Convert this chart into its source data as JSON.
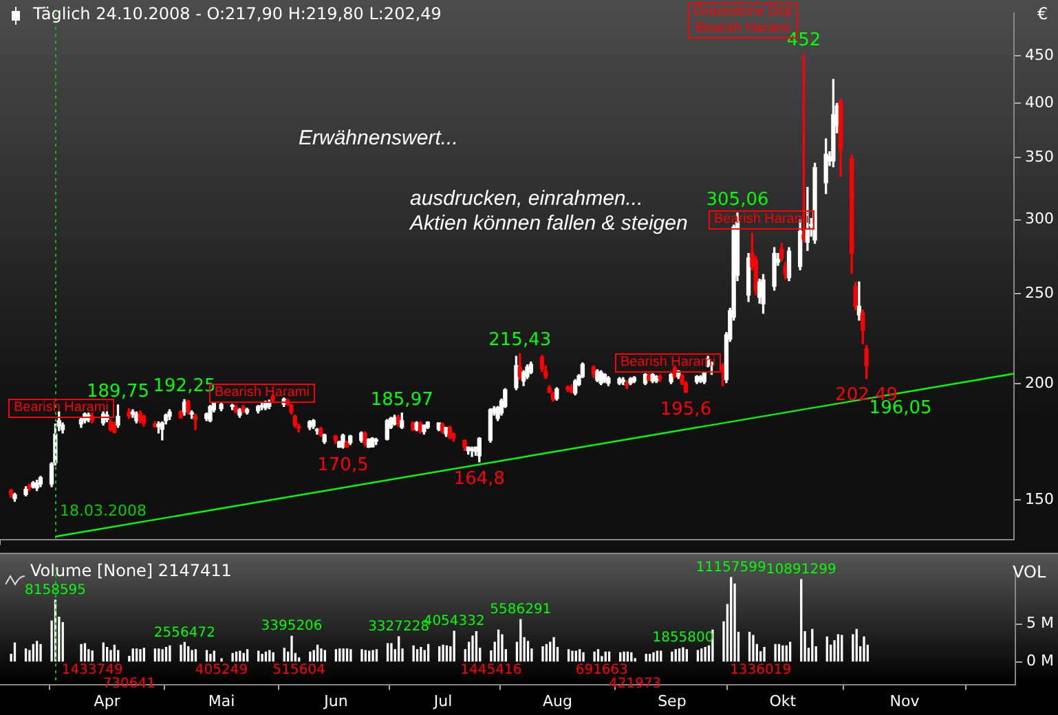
{
  "chart_data": [
    {
      "type": "candlestick",
      "title": "Täglich 24.10.2008 - O:217,90 H:219,80 L:202,49",
      "ylabel": "€",
      "annotations": [
        "Erwähnenswert...",
        "ausdrucken, einrahmen...",
        "Aktien können fallen & steigen",
        "Bearish Harami",
        "Bearish Harami",
        "Bearish Harami",
        "Bearish Harami",
        "Gravestone Doji\nBearish Harami",
        {
          "text": "189,75",
          "x": "2008-04-04",
          "y": 189.75
        },
        {
          "text": "192,25",
          "x": "2008-04-22",
          "y": 192.25
        },
        {
          "text": "170,5",
          "x": "2008-06-04",
          "y": 170.5
        },
        {
          "text": "185,97",
          "x": "2008-06-20",
          "y": 185.97
        },
        {
          "text": "164,8",
          "x": "2008-07-11",
          "y": 164.8
        },
        {
          "text": "215,43",
          "x": "2008-07-22",
          "y": 215.43
        },
        {
          "text": "195,6",
          "x": "2008-09-05",
          "y": 195.6
        },
        {
          "text": "305,06",
          "x": "2008-09-19",
          "y": 305.06
        },
        {
          "text": "452",
          "x": "2008-10-07",
          "y": 452
        },
        {
          "text": "202,49",
          "x": "2008-10-24",
          "y": 202.49
        },
        {
          "text": "196,05",
          "x": "2008-10-24",
          "y": 196.05
        }
      ],
      "x": [
        "2008-03-06",
        "2008-03-07",
        "2008-03-10",
        "2008-03-11",
        "2008-03-12",
        "2008-03-13",
        "2008-03-14",
        "2008-03-17",
        "2008-03-18",
        "2008-03-19",
        "2008-03-20",
        "2008-03-25",
        "2008-03-26",
        "2008-03-27",
        "2008-03-28",
        "2008-03-31",
        "2008-04-01",
        "2008-04-02",
        "2008-04-03",
        "2008-04-04",
        "2008-04-07",
        "2008-04-08",
        "2008-04-09",
        "2008-04-10",
        "2008-04-11",
        "2008-04-14",
        "2008-04-15",
        "2008-04-16",
        "2008-04-17",
        "2008-04-18",
        "2008-04-21",
        "2008-04-22",
        "2008-04-23",
        "2008-04-24",
        "2008-04-25",
        "2008-04-28",
        "2008-04-29",
        "2008-04-30",
        "2008-05-02",
        "2008-05-05",
        "2008-05-06",
        "2008-05-07",
        "2008-05-08",
        "2008-05-09",
        "2008-05-12",
        "2008-05-13",
        "2008-05-14",
        "2008-05-15",
        "2008-05-16",
        "2008-05-19",
        "2008-05-20",
        "2008-05-21",
        "2008-05-22",
        "2008-05-23",
        "2008-05-26",
        "2008-05-27",
        "2008-05-28",
        "2008-05-29",
        "2008-05-30",
        "2008-06-02",
        "2008-06-03",
        "2008-06-04",
        "2008-06-05",
        "2008-06-06",
        "2008-06-09",
        "2008-06-10",
        "2008-06-11",
        "2008-06-12",
        "2008-06-13",
        "2008-06-16",
        "2008-06-17",
        "2008-06-18",
        "2008-06-19",
        "2008-06-20",
        "2008-06-23",
        "2008-06-24",
        "2008-06-25",
        "2008-06-26",
        "2008-06-27",
        "2008-06-30",
        "2008-07-01",
        "2008-07-02",
        "2008-07-03",
        "2008-07-04",
        "2008-07-07",
        "2008-07-08",
        "2008-07-09",
        "2008-07-10",
        "2008-07-11",
        "2008-07-14",
        "2008-07-15",
        "2008-07-16",
        "2008-07-17",
        "2008-07-18",
        "2008-07-21",
        "2008-07-22",
        "2008-07-23",
        "2008-07-24",
        "2008-07-25",
        "2008-07-28",
        "2008-07-29",
        "2008-07-30",
        "2008-07-31",
        "2008-08-01",
        "2008-08-04",
        "2008-08-05",
        "2008-08-06",
        "2008-08-07",
        "2008-08-08",
        "2008-08-11",
        "2008-08-12",
        "2008-08-13",
        "2008-08-14",
        "2008-08-15",
        "2008-08-18",
        "2008-08-19",
        "2008-08-20",
        "2008-08-21",
        "2008-08-22",
        "2008-08-25",
        "2008-08-26",
        "2008-08-27",
        "2008-08-28",
        "2008-08-29",
        "2008-09-01",
        "2008-09-02",
        "2008-09-03",
        "2008-09-04",
        "2008-09-05",
        "2008-09-08",
        "2008-09-09",
        "2008-09-10",
        "2008-09-11",
        "2008-09-12",
        "2008-09-15",
        "2008-09-16",
        "2008-09-17",
        "2008-09-18",
        "2008-09-19",
        "2008-09-22",
        "2008-09-23",
        "2008-09-24",
        "2008-09-25",
        "2008-09-26",
        "2008-09-29",
        "2008-09-30",
        "2008-10-01",
        "2008-10-02",
        "2008-10-03",
        "2008-10-06",
        "2008-10-07",
        "2008-10-08",
        "2008-10-09",
        "2008-10-10",
        "2008-10-13",
        "2008-10-14",
        "2008-10-15",
        "2008-10-16",
        "2008-10-17",
        "2008-10-20",
        "2008-10-21",
        "2008-10-22",
        "2008-10-23",
        "2008-10-24"
      ],
      "series": [
        {
          "colors": [
            "#ff0000",
            "#ffffff",
            "#ffffff",
            "#ff0000",
            "#ffffff",
            "#ffffff",
            "#ffffff",
            "#ffffff",
            "#ffffff",
            "#ffffff",
            "#ffffff",
            "#ffffff",
            "#ffffff",
            "#ffffff",
            "#ff0000",
            "#ffffff",
            "#ffffff",
            "#ff0000",
            "#ff0000",
            "#ffffff",
            "#ff0000",
            "#ffffff",
            "#ffffff",
            "#ff0000",
            "#ff0000",
            "#ff0000",
            "#ffffff",
            "#ffffff",
            "#ffffff",
            "#ffffff",
            "#ff0000",
            "#ffffff",
            "#ff0000",
            "#ffffff",
            "#ff0000",
            "#ffffff",
            "#ffffff",
            "#ffffff",
            "#ffffff",
            "#ffffff",
            "#ff0000",
            "#ffffff",
            "#ff0000",
            "#ffffff",
            "#ffffff",
            "#ffffff",
            "#ffffff",
            "#ffffff",
            "#ff0000",
            "#ffffff",
            "#ff0000",
            "#ff0000",
            "#ff0000",
            "#ff0000",
            "#ffffff",
            "#ffffff",
            "#ffffff",
            "#ff0000",
            "#ffffff",
            "#ff0000",
            "#ffffff",
            "#ffffff",
            "#ff0000",
            "#ffffff",
            "#ffffff",
            "#ff0000",
            "#ffffff",
            "#ffffff",
            "#ffffff",
            "#ffffff",
            "#ffffff",
            "#ffffff",
            "#ff0000",
            "#ffffff",
            "#ff0000",
            "#ffffff",
            "#ff0000",
            "#ffffff",
            "#ffffff",
            "#ffffff",
            "#ff0000",
            "#ffffff",
            "#ff0000",
            "#ff0000",
            "#ff0000",
            "#ffffff",
            "#ffffff",
            "#ffffff",
            "#ffffff",
            "#ffffff",
            "#ffffff",
            "#ffffff",
            "#ffffff",
            "#ffffff",
            "#ffffff",
            "#ff0000",
            "#ffffff",
            "#ffffff",
            "#ffffff",
            "#ff0000",
            "#ff0000",
            "#ff0000",
            "#ff0000",
            "#ffffff",
            "#ff0000",
            "#ff0000",
            "#ffffff",
            "#ffffff",
            "#ffffff",
            "#ff0000",
            "#ffffff",
            "#ffffff",
            "#ffffff",
            "#ffffff",
            "#ffffff",
            "#ffffff",
            "#ff0000",
            "#ffffff",
            "#ffffff",
            "#ffffff",
            "#ff0000",
            "#ffffff",
            "#ffffff",
            "#ff0000",
            "#ffffff",
            "#ff0000",
            "#ffffff",
            "#ff0000",
            "#ff0000",
            "#ffffff",
            "#ffffff",
            "#ffffff",
            "#ffffff",
            "#ffffff",
            "#ff0000",
            "#ffffff",
            "#ffffff",
            "#ffffff",
            "#ffffff",
            "#ffffff",
            "#ff0000",
            "#ff0000",
            "#ffffff",
            "#ffffff",
            "#ffffff",
            "#ffffff",
            "#ff0000",
            "#ff0000",
            "#ffffff",
            "#ffffff",
            "#ff0000",
            "#ffffff",
            "#ffffff",
            "#ffffff",
            "#ffffff",
            "#ffffff",
            "#ffffff",
            "#ffffff",
            "#ff0000",
            "#ff0000",
            "#ff0000",
            "#ffffff",
            "#ff0000",
            "#ff0000"
          ],
          "ohlc": [
            [
              153.5,
              154,
              151,
              152
            ],
            [
              150.5,
              152.5,
              149.5,
              152
            ],
            [
              152,
              155,
              151.5,
              154
            ],
            [
              155.5,
              156,
              153.5,
              154.5
            ],
            [
              155,
              157,
              154.5,
              156.5
            ],
            [
              154.5,
              157.5,
              153.5,
              156.5
            ],
            [
              156,
              159,
              155,
              158.5
            ],
            [
              156,
              164.5,
              155,
              164
            ],
            [
              164.5,
              181,
              163.5,
              176.5
            ],
            [
              180,
              186.5,
              178,
              182.5
            ],
            [
              178.5,
              181.5,
              177,
              180.5
            ],
            [
              181,
              184,
              179.5,
              183
            ],
            [
              182.5,
              186,
              181.5,
              185.5
            ],
            [
              183,
              186,
              182,
              185
            ],
            [
              184.5,
              186,
              181.5,
              182.5
            ],
            [
              181.5,
              186.5,
              180.5,
              185.5
            ],
            [
              183,
              186.5,
              182,
              185
            ],
            [
              182,
              183,
              178,
              178.5
            ],
            [
              181,
              182,
              177,
              177.5
            ],
            [
              180.5,
              189.75,
              179.5,
              184.5
            ],
            [
              186.5,
              188,
              183.5,
              184.5
            ],
            [
              185.5,
              187.5,
              184,
              186.5
            ],
            [
              182.5,
              186.5,
              181.5,
              185.5
            ],
            [
              186,
              187,
              181.5,
              182.5
            ],
            [
              184.5,
              185,
              180,
              181.5
            ],
            [
              181,
              182,
              179.5,
              179.8
            ],
            [
              179.8,
              182,
              177,
              181
            ],
            [
              178.6,
              182,
              174,
              181.5
            ],
            [
              182.5,
              185.5,
              181,
              185
            ],
            [
              184.5,
              187.5,
              183,
              186.5
            ],
            [
              186.5,
              187,
              183.5,
              184
            ],
            [
              186.5,
              192.25,
              185,
              191
            ],
            [
              191.5,
              192,
              185.5,
              186.5
            ],
            [
              185.5,
              187,
              183.5,
              185.8
            ],
            [
              184.5,
              185.5,
              178.5,
              183
            ],
            [
              183.5,
              186,
              182.5,
              185.5
            ],
            [
              182.5,
              189.5,
              182,
              189
            ],
            [
              187.5,
              191,
              186.5,
              190.5
            ],
            [
              188,
              190.5,
              187,
              190
            ],
            [
              189,
              190,
              187.5,
              189.3
            ],
            [
              188.6,
              189.5,
              186,
              186.5
            ],
            [
              185,
              188,
              184,
              187.5
            ],
            [
              188.6,
              189.5,
              186,
              186.7
            ],
            [
              186.3,
              188.2,
              185.5,
              187.6
            ],
            [
              187,
              189.5,
              186,
              189
            ],
            [
              188.8,
              190.5,
              187.5,
              189.2
            ],
            [
              188.3,
              191.5,
              187.5,
              190.6
            ],
            [
              189,
              192,
              188,
              190.6
            ],
            [
              193.7,
              194.5,
              191.5,
              192
            ],
            [
              190,
              193,
              189,
              192.5
            ],
            [
              192,
              192.5,
              189.5,
              190
            ],
            [
              189.5,
              190,
              185.5,
              186.5
            ],
            [
              184.5,
              185,
              179.5,
              180.5
            ],
            [
              179.5,
              181,
              177.5,
              179.3
            ],
            [
              179.5,
              182.5,
              178.5,
              182
            ],
            [
              180,
              183,
              179,
              182.5
            ],
            [
              178,
              179,
              176.5,
              178.5
            ],
            [
              179,
              179.5,
              175.5,
              176.2
            ],
            [
              173.2,
              176.5,
              172.5,
              176.2
            ],
            [
              175.7,
              176,
              172.5,
              173.8
            ],
            [
              170.9,
              173.5,
              170.8,
              173.2
            ],
            [
              171,
              176.5,
              170.5,
              176
            ],
            [
              172.8,
              173.5,
              170.8,
              170.9
            ],
            [
              172.8,
              176,
              172,
              175.7
            ],
            [
              173.8,
              177.5,
              173,
              177
            ],
            [
              177,
              177.5,
              171.5,
              172.4
            ],
            [
              170.9,
              174.5,
              170.8,
              174.3
            ],
            [
              171,
              175,
              171,
              174.7
            ],
            [
              173.5,
              174.7,
              172,
              173.7
            ],
            [
              174.3,
              183,
              174,
              182.5
            ],
            [
              179.5,
              184,
              179,
              183.5
            ],
            [
              181,
              185,
              180.5,
              184
            ],
            [
              184,
              185,
              180,
              181.5
            ],
            [
              179.5,
              185.97,
              179,
              182.5
            ],
            [
              181.5,
              182,
              178,
              178.6
            ],
            [
              178.6,
              182,
              178,
              181.5
            ],
            [
              181.5,
              182,
              177,
              177.6
            ],
            [
              177.6,
              180.5,
              176.5,
              180.5
            ],
            [
              179.5,
              182,
              179,
              181.8
            ],
            [
              178.6,
              181.5,
              178,
              181.5
            ],
            [
              180.9,
              181.5,
              177,
              177.6
            ],
            [
              176.6,
              179.5,
              175.5,
              179.5
            ],
            [
              179.5,
              180,
              174.5,
              175.2
            ],
            [
              176.6,
              177,
              173.5,
              174.7
            ],
            [
              173.8,
              174,
              169.5,
              170.9
            ],
            [
              169.4,
              171,
              168,
              170.9
            ],
            [
              169.6,
              171,
              167,
              170
            ],
            [
              169.1,
              171,
              167.5,
              170.9
            ],
            [
              167.3,
              175,
              164.8,
              174.7
            ],
            [
              173.8,
              188,
              173,
              187.5
            ],
            [
              186,
              189,
              185,
              188
            ],
            [
              183.5,
              189,
              182.5,
              188.6
            ],
            [
              186,
              192.5,
              185,
              191.7
            ],
            [
              189,
              197.5,
              188.5,
              197
            ],
            [
              198,
              214,
              197,
              209.1
            ],
            [
              208.4,
              215.43,
              202,
              203.5
            ],
            [
              201.3,
              206.5,
              199,
              205.7
            ],
            [
              203.5,
              209.5,
              202.5,
              208.4
            ],
            [
              205.7,
              211,
              205,
              209.8
            ],
            [
              213.7,
              214.5,
              206,
              207.5
            ],
            [
              206.2,
              209,
              202.5,
              203.5
            ],
            [
              198,
              199,
              195.5,
              195.9
            ],
            [
              195.2,
              196,
              191.5,
              192.3
            ],
            [
              192.7,
              198,
              192,
              197.4
            ],
            [
              198.4,
              199,
              196,
              197
            ],
            [
              198,
              199.5,
              195.5,
              195.9
            ],
            [
              195.3,
              202,
              194.5,
              201.3
            ],
            [
              199.6,
              204.5,
              199,
              203.9
            ],
            [
              203.5,
              210.5,
              203,
              209.8
            ],
            [
              208.4,
              209,
              203,
              204.6
            ],
            [
              201.7,
              207,
              201,
              206.2
            ],
            [
              200.2,
              206.5,
              199.5,
              205.7
            ],
            [
              201.3,
              205,
              200.5,
              204.6
            ],
            [
              200.2,
              203.5,
              199,
              202.8
            ],
            [
              200.2,
              203,
              199.5,
              202.4
            ],
            [
              201,
              203,
              199.5,
              201.8
            ],
            [
              199.5,
              201.5,
              197.5,
              199
            ],
            [
              200.2,
              203,
              199.5,
              202.4
            ],
            [
              201.3,
              203.5,
              200.5,
              203
            ],
            [
              200.2,
              205,
              199.5,
              204.6
            ],
            [
              203.9,
              205,
              201.5,
              201.8
            ],
            [
              201.3,
              205,
              200.5,
              204.6
            ],
            [
              201.3,
              204,
              200.5,
              203.5
            ],
            [
              203,
              204.5,
              201,
              202.6
            ],
            [
              200.9,
              205,
              200,
              204.6
            ],
            [
              208,
              209,
              203,
              203.5
            ],
            [
              203.5,
              206.5,
              202.5,
              206.2
            ],
            [
              203.9,
              204.5,
              199.5,
              200.2
            ],
            [
              200.2,
              201,
              195.6,
              195.9
            ],
            [
              200.9,
              204,
              200,
              203.5
            ],
            [
              201.3,
              204,
              200.5,
              203.5
            ],
            [
              200.9,
              206,
              200,
              205.3
            ],
            [
              209.1,
              214,
              208.5,
              212.6
            ],
            [
              209.8,
              211,
              204.6,
              210
            ],
            [
              209.1,
              210,
              199,
              206.5
            ],
            [
              202,
              227,
              200.5,
              225.7
            ],
            [
              223.3,
              241,
              222,
              239.6
            ],
            [
              235.7,
              296,
              234,
              294.7
            ],
            [
              261.5,
              305.06,
              258,
              298.6
            ],
            [
              249,
              276,
              245,
              273
            ],
            [
              276,
              290,
              265,
              267.2
            ],
            [
              271.6,
              274,
              249,
              251.7
            ],
            [
              247.6,
              259,
              244,
              257.2
            ],
            [
              243.6,
              262,
              238,
              258.6
            ],
            [
              254.4,
              280,
              252,
              276.1
            ],
            [
              270,
              276,
              268,
              272
            ],
            [
              279,
              283,
              271,
              273
            ],
            [
              267.8,
              270,
              259,
              262
            ],
            [
              260,
              280,
              258,
              277.6
            ],
            [
              267.2,
              300,
              265,
              291.5
            ],
            [
              289,
              452,
              284,
              286
            ],
            [
              283.7,
              325,
              278,
              293.1
            ],
            [
              295.5,
              301,
              288,
              296.3
            ],
            [
              285.3,
              345,
              283,
              341.4
            ],
            [
              328.6,
              366.4,
              320,
              352.8
            ],
            [
              347,
              355,
              343,
              350.8
            ],
            [
              347,
              424.5,
              342,
              389.1
            ],
            [
              378.6,
              400,
              372,
              397.6
            ],
            [
              402,
              404.2,
              334,
              356.6
            ],
            [
              348.9,
              352,
              262.8,
              276.1
            ],
            [
              254.4,
              257,
              240,
              242.2
            ],
            [
              237,
              257.2,
              234,
              242.2
            ],
            [
              238.3,
              240,
              220.8,
              228.1
            ],
            [
              217.9,
              219.8,
              202.49,
              209.1
            ]
          ]
        },
        {
          "type": "line",
          "color": "#00ff00",
          "x": [
            "2008-03-18",
            "2008-12-03"
          ],
          "values": [
            137,
            205
          ]
        }
      ],
      "xlim": [
        "2008-03-03",
        "2008-12-03"
      ],
      "ylim": [
        136,
        500
      ],
      "yticks": [
        150,
        200,
        250,
        300,
        350,
        400,
        450
      ],
      "log": true,
      "tick_labels": "y",
      "ref_lines": [
        {
          "axis": "x",
          "value": "2008-03-18",
          "label": "18.03.2008",
          "color": "#00cc00",
          "line_style": "dotted"
        }
      ]
    },
    {
      "type": "bar",
      "title": "Volume [None] 2147411",
      "ylabel": "VOL",
      "color": "#ffffff",
      "x": [
        "2008-03-06",
        "2008-03-07",
        "2008-03-10",
        "2008-03-11",
        "2008-03-12",
        "2008-03-13",
        "2008-03-14",
        "2008-03-17",
        "2008-03-18",
        "2008-03-19",
        "2008-03-20",
        "2008-03-25",
        "2008-03-26",
        "2008-03-27",
        "2008-03-28",
        "2008-03-31",
        "2008-04-01",
        "2008-04-02",
        "2008-04-03",
        "2008-04-04",
        "2008-04-07",
        "2008-04-08",
        "2008-04-09",
        "2008-04-10",
        "2008-04-11",
        "2008-04-14",
        "2008-04-15",
        "2008-04-16",
        "2008-04-17",
        "2008-04-18",
        "2008-04-21",
        "2008-04-22",
        "2008-04-23",
        "2008-04-24",
        "2008-04-25",
        "2008-04-28",
        "2008-04-29",
        "2008-04-30",
        "2008-05-02",
        "2008-05-05",
        "2008-05-06",
        "2008-05-07",
        "2008-05-08",
        "2008-05-09",
        "2008-05-12",
        "2008-05-13",
        "2008-05-14",
        "2008-05-15",
        "2008-05-16",
        "2008-05-19",
        "2008-05-20",
        "2008-05-21",
        "2008-05-22",
        "2008-05-23",
        "2008-05-26",
        "2008-05-27",
        "2008-05-28",
        "2008-05-29",
        "2008-05-30",
        "2008-06-02",
        "2008-06-03",
        "2008-06-04",
        "2008-06-05",
        "2008-06-06",
        "2008-06-09",
        "2008-06-10",
        "2008-06-11",
        "2008-06-12",
        "2008-06-13",
        "2008-06-16",
        "2008-06-17",
        "2008-06-18",
        "2008-06-19",
        "2008-06-20",
        "2008-06-23",
        "2008-06-24",
        "2008-06-25",
        "2008-06-26",
        "2008-06-27",
        "2008-06-30",
        "2008-07-01",
        "2008-07-02",
        "2008-07-03",
        "2008-07-04",
        "2008-07-07",
        "2008-07-08",
        "2008-07-09",
        "2008-07-10",
        "2008-07-11",
        "2008-07-14",
        "2008-07-15",
        "2008-07-16",
        "2008-07-17",
        "2008-07-18",
        "2008-07-21",
        "2008-07-22",
        "2008-07-23",
        "2008-07-24",
        "2008-07-25",
        "2008-07-28",
        "2008-07-29",
        "2008-07-30",
        "2008-07-31",
        "2008-08-01",
        "2008-08-04",
        "2008-08-05",
        "2008-08-06",
        "2008-08-07",
        "2008-08-08",
        "2008-08-11",
        "2008-08-12",
        "2008-08-13",
        "2008-08-14",
        "2008-08-15",
        "2008-08-18",
        "2008-08-19",
        "2008-08-20",
        "2008-08-21",
        "2008-08-22",
        "2008-08-25",
        "2008-08-26",
        "2008-08-27",
        "2008-08-28",
        "2008-08-29",
        "2008-09-01",
        "2008-09-02",
        "2008-09-03",
        "2008-09-04",
        "2008-09-05",
        "2008-09-08",
        "2008-09-09",
        "2008-09-10",
        "2008-09-11",
        "2008-09-12",
        "2008-09-15",
        "2008-09-16",
        "2008-09-17",
        "2008-09-18",
        "2008-09-19",
        "2008-09-22",
        "2008-09-23",
        "2008-09-24",
        "2008-09-25",
        "2008-09-26",
        "2008-09-29",
        "2008-09-30",
        "2008-10-01",
        "2008-10-02",
        "2008-10-03",
        "2008-10-06",
        "2008-10-07",
        "2008-10-08",
        "2008-10-09",
        "2008-10-10",
        "2008-10-13",
        "2008-10-14",
        "2008-10-15",
        "2008-10-16",
        "2008-10-17",
        "2008-10-20",
        "2008-10-21",
        "2008-10-22",
        "2008-10-23",
        "2008-10-24"
      ],
      "values": [
        1000000,
        2500000,
        1700000,
        1500000,
        2300000,
        2700000,
        2300000,
        5400000,
        8158595,
        5900000,
        5200000,
        2300000,
        2400000,
        1600000,
        1433749,
        2500000,
        1900000,
        1500000,
        2200000,
        1500000,
        730641,
        1700000,
        1700000,
        1600000,
        1800000,
        1700000,
        1700000,
        1600000,
        1900000,
        2100000,
        2200000,
        2556472,
        2000000,
        1500000,
        1600000,
        1500000,
        1000000,
        1400000,
        405249,
        1100000,
        1300000,
        1400000,
        1100000,
        1600000,
        1400000,
        1000000,
        1300000,
        1500000,
        1200000,
        1800000,
        1300000,
        3395206,
        1100000,
        515604,
        1300000,
        1500000,
        2200000,
        1700000,
        1500000,
        1600000,
        1700000,
        1700000,
        1700000,
        1600000,
        1600000,
        1500000,
        1400000,
        1500000,
        1600000,
        2400000,
        2400000,
        1600000,
        3327228,
        1700000,
        2100000,
        1600000,
        1900000,
        1500000,
        2300000,
        2000000,
        2200000,
        2100000,
        2000000,
        4054332,
        1600000,
        2600000,
        3400000,
        4000000,
        1800000,
        1445416,
        2600000,
        4200000,
        3600000,
        1600000,
        2600000,
        5586291,
        3200000,
        2700000,
        1700000,
        2000000,
        2300000,
        2600000,
        3200000,
        1900000,
        1600000,
        1400000,
        1400000,
        1600000,
        1200000,
        1300000,
        1600000,
        691663,
        1300000,
        1300000,
        1200000,
        1300000,
        1300000,
        1200000,
        421973,
        1000000,
        1000000,
        1200000,
        1400000,
        1400000,
        1300000,
        1600000,
        1700000,
        1855800,
        1600000,
        1500000,
        1700000,
        1900000,
        2100000,
        4200000,
        5300000,
        7600000,
        11157599,
        10300000,
        3900000,
        3900000,
        3500000,
        2300000,
        1336019,
        1900000,
        2300000,
        2300000,
        2100000,
        2100000,
        2600000,
        10891299,
        4000000,
        1800000,
        4300000,
        2000000,
        3300000,
        2200000,
        2800000,
        3600000,
        3500000,
        3600000,
        4300000,
        2000000,
        3300000,
        2200000
      ],
      "value_labels": [
        null,
        null,
        null,
        null,
        null,
        null,
        null,
        null,
        "8158595",
        null,
        null,
        null,
        null,
        null,
        "1433749",
        null,
        null,
        null,
        null,
        null,
        "730641",
        null,
        null,
        null,
        null,
        null,
        null,
        null,
        null,
        null,
        null,
        "2556472",
        null,
        null,
        null,
        null,
        null,
        null,
        "405249",
        null,
        null,
        null,
        null,
        null,
        null,
        null,
        null,
        null,
        null,
        null,
        null,
        "3395206",
        null,
        "515604",
        null,
        null,
        null,
        null,
        null,
        null,
        null,
        null,
        null,
        null,
        null,
        null,
        null,
        null,
        null,
        null,
        null,
        null,
        "3327228",
        null,
        null,
        null,
        null,
        null,
        null,
        null,
        null,
        null,
        null,
        "4054332",
        null,
        null,
        null,
        null,
        null,
        "1445416",
        null,
        null,
        null,
        null,
        null,
        "5586291",
        null,
        null,
        null,
        null,
        null,
        null,
        null,
        null,
        null,
        null,
        null,
        null,
        null,
        null,
        null,
        "691663",
        null,
        null,
        null,
        null,
        null,
        null,
        "421973",
        null,
        null,
        null,
        null,
        null,
        null,
        null,
        null,
        "1855800",
        null,
        null,
        null,
        null,
        null,
        null,
        null,
        null,
        "11157599",
        null,
        null,
        null,
        null,
        null,
        "1336019",
        null,
        null,
        null,
        null,
        null,
        null,
        "10891299",
        null,
        null,
        null,
        null,
        null,
        null,
        null,
        null,
        null,
        null,
        null,
        null,
        null,
        null
      ],
      "xlim": [
        "2008-03-03",
        "2008-12-03"
      ],
      "ylim": [
        -3000000,
        12500000
      ],
      "xticks": [
        {
          "value": "2008-04-01",
          "label": "Apr"
        },
        {
          "value": "2008-05-02",
          "label": "Mai"
        },
        {
          "value": "2008-06-02",
          "label": "Jun"
        },
        {
          "value": "2008-07-01",
          "label": "Jul"
        },
        {
          "value": "2008-08-01",
          "label": "Aug"
        },
        {
          "value": "2008-09-01",
          "label": "Sep"
        },
        {
          "value": "2008-10-01",
          "label": "Okt"
        },
        {
          "value": "2008-11-03",
          "label": "Nov"
        }
      ],
      "yticks": [
        {
          "value": 0,
          "label": "0 M"
        },
        {
          "value": 5000000,
          "label": "5 M"
        }
      ],
      "ref_lines": [
        {
          "axis": "x",
          "value": "2008-03-18",
          "color": "#00cc00",
          "line_style": "dotted"
        }
      ]
    }
  ]
}
